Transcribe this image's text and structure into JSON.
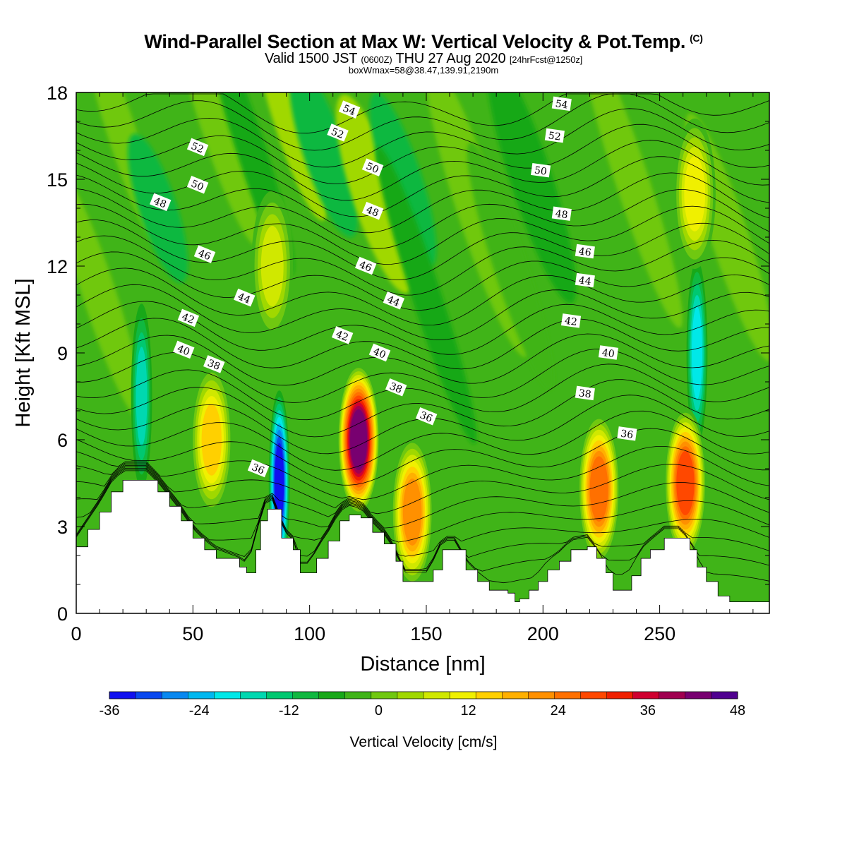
{
  "chart_data": {
    "type": "heatmap",
    "title": "Wind-Parallel Section at Max W: Vertical Velocity & Pot.Temp.",
    "title_mark": "(C)",
    "subtitle": {
      "prefix": "Valid 1500 JST",
      "utc": "(0600Z)",
      "date": "THU 27 Aug 2020",
      "fcst": "[24hrFcst@1250z]"
    },
    "boxwmax": "boxWmax=58@38.47,139.91,2190m",
    "xlabel": "Distance [nm]",
    "ylabel": "Height [Kft MSL]",
    "xlim": [
      0,
      297
    ],
    "ylim": [
      0,
      18
    ],
    "xticks": [
      0,
      50,
      100,
      150,
      200,
      250
    ],
    "yticks": [
      0,
      3,
      6,
      9,
      12,
      15,
      18
    ],
    "colorbar": {
      "label": "Vertical Velocity [cm/s]",
      "min": -36,
      "max": 48,
      "step": 4,
      "ticks": [
        -36,
        -24,
        -12,
        0,
        12,
        24,
        36,
        48
      ],
      "colors": [
        "#1010f0",
        "#0848f0",
        "#0888f0",
        "#00b8f0",
        "#00e8e8",
        "#00d8b0",
        "#00c870",
        "#10b840",
        "#18a818",
        "#40b418",
        "#70c810",
        "#a0d800",
        "#d0e800",
        "#f0f000",
        "#ffd000",
        "#ffb000",
        "#ff9000",
        "#ff7000",
        "#ff4800",
        "#f02000",
        "#d00030",
        "#a00050",
        "#780070",
        "#500090"
      ]
    },
    "updrafts_cm_s": [
      {
        "x": 58,
        "z": 6.0,
        "w": 18
      },
      {
        "x": 121,
        "z": 6.0,
        "w": 52
      },
      {
        "x": 144,
        "z": 3.5,
        "w": 26
      },
      {
        "x": 224,
        "z": 4.3,
        "w": 32
      },
      {
        "x": 261,
        "z": 4.5,
        "w": 34
      },
      {
        "x": 84,
        "z": 12.0,
        "w": 12
      },
      {
        "x": 265,
        "z": 14.5,
        "w": 14
      }
    ],
    "downdrafts_cm_s": [
      {
        "x": 87,
        "z": 4.5,
        "w": -30
      },
      {
        "x": 28,
        "z": 7.5,
        "w": -12
      },
      {
        "x": 266,
        "z": 9.0,
        "w": -15
      }
    ],
    "theta_contours": [
      {
        "value": "36",
        "labels": [
          [
            78,
            5.0
          ],
          [
            150,
            6.8
          ],
          [
            236,
            6.2
          ]
        ]
      },
      {
        "value": "38",
        "labels": [
          [
            59,
            8.6
          ],
          [
            137,
            7.8
          ],
          [
            218,
            7.6
          ]
        ]
      },
      {
        "value": "40",
        "labels": [
          [
            46,
            9.1
          ],
          [
            130,
            9.0
          ],
          [
            228,
            9.0
          ]
        ]
      },
      {
        "value": "42",
        "labels": [
          [
            48,
            10.2
          ],
          [
            114,
            9.6
          ],
          [
            212,
            10.1
          ]
        ]
      },
      {
        "value": "44",
        "labels": [
          [
            72,
            10.9
          ],
          [
            136,
            10.8
          ],
          [
            218,
            11.5
          ]
        ]
      },
      {
        "value": "46",
        "labels": [
          [
            55,
            12.4
          ],
          [
            124,
            12.0
          ],
          [
            218,
            12.5
          ]
        ]
      },
      {
        "value": "48",
        "labels": [
          [
            36,
            14.2
          ],
          [
            127,
            13.9
          ],
          [
            208,
            13.8
          ]
        ]
      },
      {
        "value": "50",
        "labels": [
          [
            52,
            14.8
          ],
          [
            127,
            15.4
          ],
          [
            199,
            15.3
          ]
        ]
      },
      {
        "value": "52",
        "labels": [
          [
            52,
            16.1
          ],
          [
            112,
            16.6
          ],
          [
            205,
            16.5
          ]
        ]
      },
      {
        "value": "54",
        "labels": [
          [
            117,
            17.4
          ],
          [
            208,
            17.6
          ]
        ]
      }
    ],
    "terrain_kft": [
      [
        0,
        2.3
      ],
      [
        5,
        2.9
      ],
      [
        10,
        3.5
      ],
      [
        15,
        4.2
      ],
      [
        20,
        4.6
      ],
      [
        30,
        4.6
      ],
      [
        35,
        4.2
      ],
      [
        40,
        3.7
      ],
      [
        45,
        3.2
      ],
      [
        50,
        2.6
      ],
      [
        55,
        2.2
      ],
      [
        60,
        1.9
      ],
      [
        70,
        1.6
      ],
      [
        73,
        1.4
      ],
      [
        77,
        2.2
      ],
      [
        79,
        3.2
      ],
      [
        82,
        3.6
      ],
      [
        85,
        3.6
      ],
      [
        88,
        2.6
      ],
      [
        93,
        2.2
      ],
      [
        96,
        1.4
      ],
      [
        100,
        1.4
      ],
      [
        103,
        1.9
      ],
      [
        108,
        2.5
      ],
      [
        113,
        3.2
      ],
      [
        117,
        3.4
      ],
      [
        122,
        3.3
      ],
      [
        127,
        2.8
      ],
      [
        132,
        2.4
      ],
      [
        137,
        1.8
      ],
      [
        140,
        1.1
      ],
      [
        150,
        1.1
      ],
      [
        153,
        1.5
      ],
      [
        157,
        2.2
      ],
      [
        162,
        2.2
      ],
      [
        167,
        1.5
      ],
      [
        172,
        1.1
      ],
      [
        177,
        0.8
      ],
      [
        185,
        0.7
      ],
      [
        188,
        0.4
      ],
      [
        190,
        0.5
      ],
      [
        194,
        0.8
      ],
      [
        198,
        1.1
      ],
      [
        202,
        1.5
      ],
      [
        207,
        1.8
      ],
      [
        212,
        2.2
      ],
      [
        219,
        2.3
      ],
      [
        223,
        1.9
      ],
      [
        227,
        1.4
      ],
      [
        230,
        0.8
      ],
      [
        234,
        0.8
      ],
      [
        238,
        1.3
      ],
      [
        242,
        1.9
      ],
      [
        246,
        2.2
      ],
      [
        252,
        2.6
      ],
      [
        258,
        2.6
      ],
      [
        263,
        2.2
      ],
      [
        266,
        1.6
      ],
      [
        270,
        1.1
      ],
      [
        275,
        0.6
      ],
      [
        280,
        0.4
      ],
      [
        290,
        0.4
      ],
      [
        297,
        0.5
      ]
    ]
  }
}
